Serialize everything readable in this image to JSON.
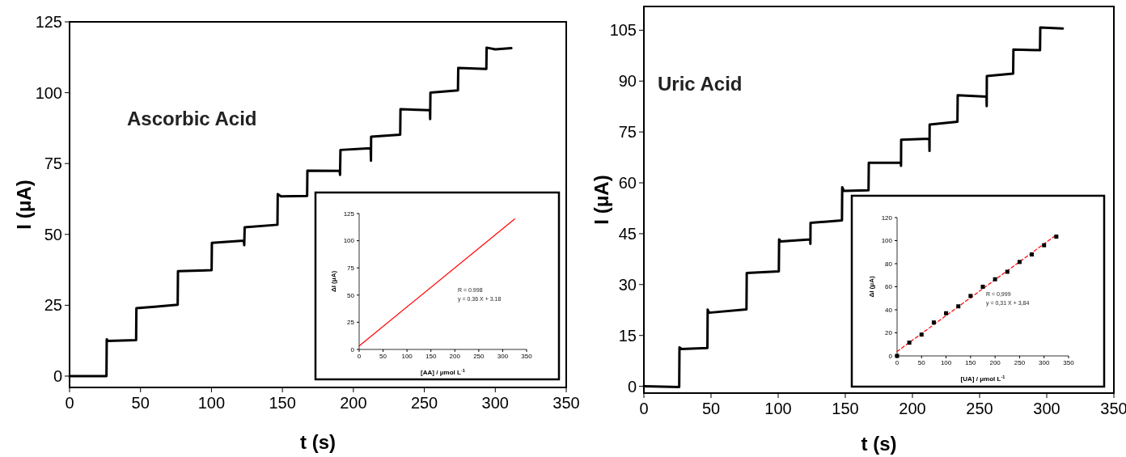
{
  "chart_data": [
    {
      "type": "line",
      "xlabel": "t (s)",
      "ylabel": "I (μA)",
      "xlim": [
        0,
        350
      ],
      "ylim": [
        -4,
        125
      ],
      "xticks": [
        0,
        50,
        100,
        150,
        200,
        250,
        300,
        350
      ],
      "yticks": [
        0,
        25,
        50,
        75,
        100,
        125
      ],
      "annotations": [
        "Ascorbic Acid"
      ],
      "series": [
        {
          "color": "#000000",
          "x": [
            0,
            26.0,
            26.2,
            27,
            46.9,
            47.1,
            60,
            76.2,
            76.4,
            100.1,
            100.3,
            122.8,
            123.1,
            123.4,
            146.5,
            146.7,
            149,
            167.4,
            167.6,
            190.3,
            190.6,
            190.9,
            212.2,
            212.4,
            212.5,
            233,
            233.2,
            254,
            254.1,
            254.3,
            273.7,
            273.9,
            293.7,
            293.9,
            300,
            311.3
          ],
          "values": [
            0,
            0,
            13,
            12.4,
            12.7,
            24.0,
            24.5,
            25.2,
            37.0,
            37.4,
            47.0,
            47.8,
            46.2,
            52.5,
            53.4,
            64.2,
            63.4,
            63.6,
            72.5,
            72.4,
            71,
            79.8,
            80.4,
            76,
            84.5,
            85.2,
            94.2,
            93.8,
            90.7,
            100,
            100.8,
            108.7,
            108.4,
            115.9,
            115.3,
            115.7
          ]
        }
      ]
    },
    {
      "type": "line",
      "xlabel": "[AA] / μmol L$^{-1}$",
      "ylabel": "ΔI (μA)",
      "xlim": [
        0,
        350
      ],
      "ylim": [
        0,
        125
      ],
      "xticks": [
        0,
        50,
        100,
        150,
        200,
        250,
        300,
        350
      ],
      "yticks": [
        0,
        25,
        50,
        75,
        100,
        125
      ],
      "annotations": [
        "R = 0.998",
        "y = 0.36 X + 3.18"
      ],
      "series": [
        {
          "color": "#ff0000",
          "x": [
            0,
            325
          ],
          "values": [
            3.2,
            120
          ]
        }
      ]
    },
    {
      "type": "line",
      "xlabel": "t (s)",
      "ylabel": "I (μA)",
      "xlim": [
        0,
        350
      ],
      "ylim": [
        -2,
        112
      ],
      "xticks": [
        0,
        50,
        100,
        150,
        200,
        250,
        300,
        350
      ],
      "yticks": [
        0,
        15,
        30,
        45,
        60,
        75,
        90,
        105
      ],
      "annotations": [
        "Uric Acid"
      ],
      "series": [
        {
          "color": "#000000",
          "x": [
            0,
            26.3,
            26.5,
            28,
            47.3,
            47.5,
            48.5,
            76.4,
            76.6,
            100.5,
            100.7,
            102,
            123.9,
            124,
            124.1,
            147.5,
            147.7,
            149,
            167.3,
            167.5,
            191.4,
            191.5,
            191.6,
            212.6,
            212.7,
            212.8,
            233.5,
            233.7,
            255.2,
            255.3,
            255.4,
            275,
            275.2,
            295,
            295.2,
            312
          ],
          "values": [
            0,
            -0.2,
            11.5,
            11,
            11.3,
            22.6,
            21.7,
            22.7,
            33.4,
            33.9,
            43.3,
            42.7,
            43.3,
            42,
            48.2,
            48.9,
            58.7,
            57.6,
            57.8,
            65.9,
            65.9,
            65,
            72.7,
            73,
            69.4,
            77.2,
            78,
            85.8,
            85.4,
            82.6,
            91.5,
            92.2,
            99.3,
            99.1,
            105.8,
            105.5
          ]
        }
      ]
    },
    {
      "type": "scatter",
      "xlabel": "[UA] / μmol L$^{-1}$",
      "ylabel": "ΔI (μA)",
      "xlim": [
        0,
        350
      ],
      "ylim": [
        0,
        120
      ],
      "xticks": [
        0,
        50,
        100,
        150,
        200,
        250,
        300,
        350
      ],
      "yticks": [
        0,
        20,
        40,
        60,
        80,
        100,
        120
      ],
      "annotations": [
        "R = 0,999",
        "y = 0,31 X + 3,84"
      ],
      "series": [
        {
          "type": "line",
          "color": "#ff0000",
          "line_style": "dashed",
          "x": [
            0,
            325
          ],
          "values": [
            3.8,
            105
          ]
        },
        {
          "color": "#000000",
          "marker": "square",
          "x": [
            0,
            25,
            50,
            75,
            100,
            125,
            150,
            175,
            200,
            225,
            250,
            275,
            300,
            325
          ],
          "values": [
            0,
            11.5,
            18.5,
            29,
            37,
            43,
            52,
            60,
            66.5,
            73,
            81.5,
            88,
            96,
            103.5
          ]
        }
      ]
    }
  ]
}
